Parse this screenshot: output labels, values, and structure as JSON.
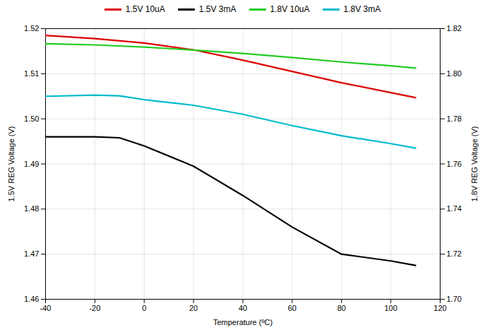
{
  "chart_data": {
    "type": "line",
    "xlabel": "Temperature (ºC)",
    "ylabel": "1.5V REG Voltage (V)",
    "y2label": "1.8V REG Voltage (V)",
    "xlim": [
      -40,
      120
    ],
    "xticks": [
      -40,
      -20,
      0,
      20,
      40,
      60,
      80,
      100,
      120
    ],
    "ylim": [
      1.46,
      1.52
    ],
    "yticks": [
      1.46,
      1.47,
      1.48,
      1.49,
      {
        "value": 1.5,
        "label": "1.50"
      },
      1.51,
      1.52
    ],
    "y2lim": [
      1.7,
      1.82
    ],
    "y2ticks": [
      {
        "value": 1.7,
        "label": "1.70"
      },
      1.72,
      1.74,
      1.76,
      1.78,
      {
        "value": 1.8,
        "label": "1.80"
      },
      1.82
    ],
    "grid": true,
    "legend": "top",
    "series": [
      {
        "name": "1.5V 10uA",
        "color": "#dd0000",
        "x": [
          -40,
          -20,
          0,
          20,
          40,
          60,
          80,
          100,
          110
        ],
        "values": [
          1.5185,
          1.5178,
          1.5168,
          1.5153,
          1.513,
          1.5105,
          1.508,
          1.5058,
          1.5047
        ]
      },
      {
        "name": "1.5V 3mA",
        "color": "#000000",
        "x": [
          -40,
          -20,
          -10,
          0,
          20,
          40,
          60,
          80,
          100,
          110
        ],
        "values": [
          1.496,
          1.496,
          1.4958,
          1.494,
          1.4895,
          1.483,
          1.476,
          1.47,
          1.4685,
          1.4675
        ]
      },
      {
        "name": "1.8V 10uA",
        "color": "#22cc22",
        "axis": "y2",
        "x": [
          -40,
          -20,
          0,
          20,
          40,
          60,
          80,
          100,
          110
        ],
        "values": [
          1.8133,
          1.8128,
          1.8118,
          1.8105,
          1.809,
          1.8072,
          1.8052,
          1.8035,
          1.8025
        ]
      },
      {
        "name": "1.8V 3mA",
        "color": "#00bbcc",
        "axis": "y2",
        "x": [
          -40,
          -20,
          -10,
          0,
          20,
          40,
          60,
          80,
          100,
          110
        ],
        "values": [
          1.79,
          1.7905,
          1.7902,
          1.7885,
          1.786,
          1.782,
          1.777,
          1.7725,
          1.769,
          1.767
        ]
      }
    ]
  }
}
